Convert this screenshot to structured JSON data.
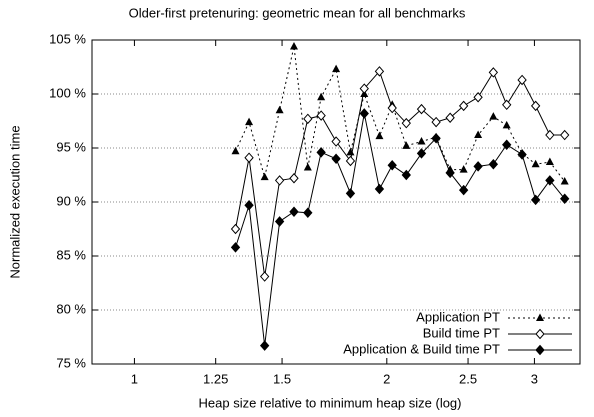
{
  "chart_data": {
    "type": "line",
    "title": "Older-first pretenuring: geometric mean for all benchmarks",
    "xlabel": "Heap size relative to minimum heap size (log)",
    "ylabel": "Normalized execution time",
    "xlog": true,
    "x": [
      1.32,
      1.37,
      1.43,
      1.49,
      1.55,
      1.61,
      1.67,
      1.74,
      1.81,
      1.88,
      1.96,
      2.03,
      2.11,
      2.2,
      2.29,
      2.38,
      2.47,
      2.57,
      2.68,
      2.78,
      2.9,
      3.01,
      3.13,
      3.26
    ],
    "series": [
      {
        "name": "Application PT",
        "color": "#000000",
        "dashed": true,
        "marker": "triangle",
        "values": [
          94.7,
          97.4,
          92.3,
          98.5,
          104.4,
          93.2,
          99.7,
          102.3,
          94.6,
          100.0,
          96.1,
          99.0,
          95.2,
          95.6,
          96.0,
          93.0,
          93.0,
          96.2,
          97.9,
          97.1,
          94.5,
          93.5,
          93.7,
          91.9
        ]
      },
      {
        "name": "Build time PT",
        "color": "#000000",
        "dashed": false,
        "marker": "diamond-open",
        "values": [
          87.5,
          94.1,
          83.1,
          92.0,
          92.2,
          97.7,
          98.0,
          95.6,
          93.8,
          100.5,
          102.1,
          98.7,
          97.3,
          98.6,
          97.4,
          97.8,
          98.9,
          99.7,
          102.0,
          99.0,
          101.3,
          98.9,
          96.2,
          96.2
        ]
      },
      {
        "name": "Application & Build time PT",
        "color": "#000000",
        "dashed": false,
        "marker": "diamond",
        "values": [
          85.8,
          89.7,
          76.7,
          88.2,
          89.1,
          89.0,
          94.6,
          94.0,
          90.8,
          98.2,
          91.2,
          93.4,
          92.5,
          94.5,
          95.9,
          92.7,
          91.1,
          93.3,
          93.5,
          95.3,
          94.4,
          90.2,
          92.0,
          90.3
        ]
      }
    ],
    "xlim": [
      0.89,
      3.4
    ],
    "xticks": [
      1,
      1.25,
      1.5,
      2,
      2.5,
      3
    ],
    "ylim": [
      75,
      105
    ],
    "yticks": [
      {
        "value": 75,
        "label": "75 %"
      },
      {
        "value": 80,
        "label": "80 %"
      },
      {
        "value": 85,
        "label": "85 %"
      },
      {
        "value": 90,
        "label": "90 %"
      },
      {
        "value": 95,
        "label": "95 %"
      },
      {
        "value": 100,
        "label": "100 %"
      },
      {
        "value": 105,
        "label": "105 %"
      }
    ],
    "grid": true,
    "legend": "bottom-right"
  }
}
